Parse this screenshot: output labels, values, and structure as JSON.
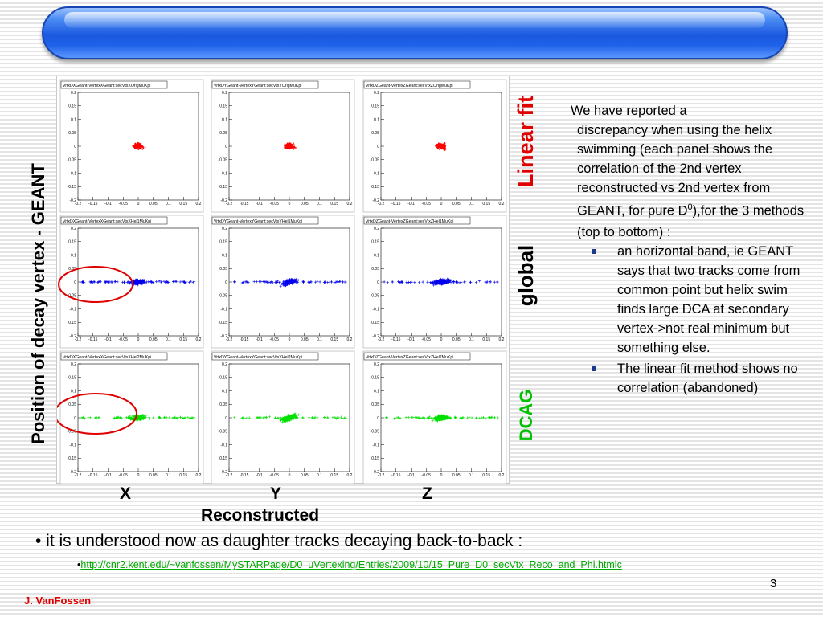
{
  "slide": {
    "y_axis_label": "Position of decay vertex - GEANT",
    "method_labels": {
      "linear": "Linear fit",
      "global": "global",
      "dcag": "DCAG"
    },
    "column_labels": [
      "X",
      "Y",
      "Z"
    ],
    "x_axis_label": "Reconstructed",
    "description": {
      "intro_line1": "We have reported a",
      "intro_rest": "discrepancy when using the helix swimming (each panel shows the correlation of the 2nd vertex reconstructed vs 2nd vertex from GEANT, for pure D",
      "intro_sup": "0",
      "intro_tail": "),for the 3 methods",
      "intro_end": "(top to bottom) :",
      "bullets": [
        "an horizontal band, ie GEANT says that two tracks come from common point but helix swim finds large DCA at secondary vertex->not real minimum but something else.",
        "The linear fit method shows no correlation (abandoned)"
      ]
    },
    "main_bullet": "• it is understood now as daughter tracks decaying back-to-back :",
    "link_bullet": "•",
    "link": "http://cnr2.kent.edu/~vanfossen/MySTARPage/D0_uVertexing/Entries/2009/10/15_Pure_D0_secVtx_Reco_and_Phi.htmlc",
    "page_number": "3",
    "author": "J. VanFossen"
  },
  "colors": {
    "linear": "#ff0000",
    "global": "#0000ee",
    "dcag": "#00e000"
  },
  "plots": {
    "titles": [
      [
        "VrtxDXGeant-VertexXGeant:secVtxXOrigMuKpi",
        "VrtxDYGeant-VertexYGeant:secVtxYOrigMuKpi",
        "VrtxDZGeant-VertexZGeant:secVtxZOrigMuKpi"
      ],
      [
        "VrtxDXGeant-VertexXGeant:secVtxXHel1MuKpi",
        "VrtxDYGeant-VertexYGeant:secVtxYHel1MuKpi",
        "VrtxDZGeant-VertexZGeant:secVtxZHel1MuKpi"
      ],
      [
        "VrtxDXGeant-VertexXGeant:secVtxXHel2MuKpi",
        "VrtxDYGeant-VertexYGeant:secVtxYHel2MuKpi",
        "VrtxDZGeant-VertexZGeant:secVtxZHel2MuKpi"
      ]
    ],
    "x_ticks": [
      "-0.2",
      "-0.15",
      "-0.1",
      "-0.05",
      "0",
      "0.05",
      "0.1",
      "0.15",
      "0.2"
    ],
    "y_ticks": [
      "0.2",
      "0.15",
      "0.1",
      "0.05",
      "0",
      "-0.05",
      "-0.1",
      "-0.15",
      "-0.2"
    ]
  }
}
